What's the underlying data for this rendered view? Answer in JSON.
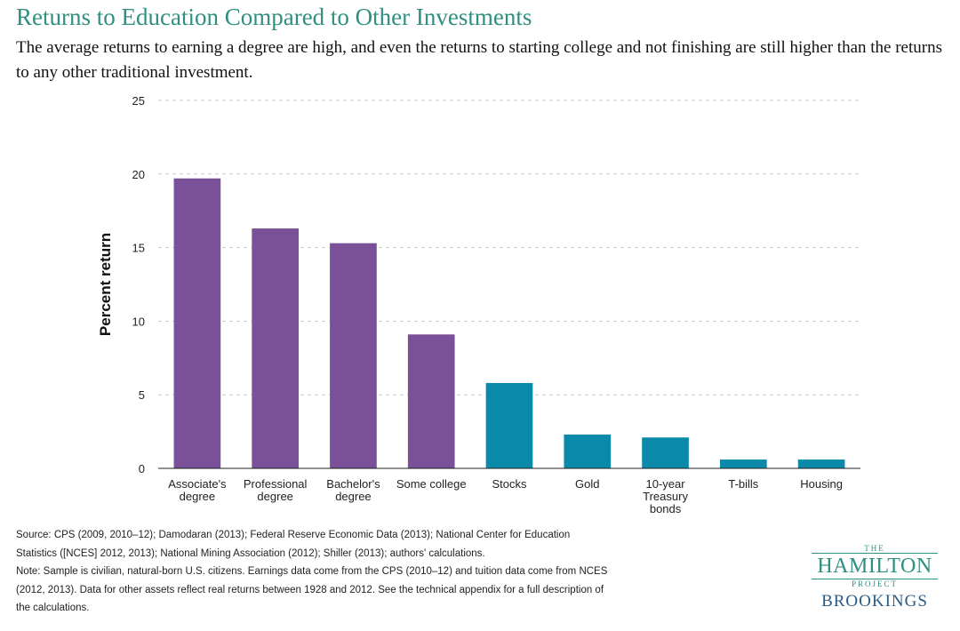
{
  "header": {
    "title": "Returns to Education Compared to Other Investments",
    "subtitle": "The average returns to earning a degree are high, and even the returns to starting college and not finishing are still higher than the returns to any other traditional investment."
  },
  "chart_data": {
    "type": "bar",
    "title": "Returns to Education Compared to Other Investments",
    "xlabel": "",
    "ylabel": "Percent return",
    "ylim": [
      0,
      25
    ],
    "yticks": [
      0,
      5,
      10,
      15,
      20,
      25
    ],
    "grid": true,
    "categories": [
      [
        "Associate's",
        "degree"
      ],
      [
        "Professional",
        "degree"
      ],
      [
        "Bachelor's",
        "degree"
      ],
      [
        "Some college"
      ],
      [
        "Stocks"
      ],
      [
        "Gold"
      ],
      [
        "10-year",
        "Treasury",
        "bonds"
      ],
      [
        "T-bills"
      ],
      [
        "Housing"
      ]
    ],
    "values": [
      19.7,
      16.3,
      15.3,
      9.1,
      5.8,
      2.3,
      2.1,
      0.6,
      0.6
    ],
    "groups": [
      "education",
      "education",
      "education",
      "education",
      "investment",
      "investment",
      "investment",
      "investment",
      "investment"
    ],
    "colors": {
      "education": "#7a5099",
      "investment": "#0b89a8",
      "grid": "#c8c8c8",
      "axis": "#222222"
    }
  },
  "notes": {
    "source": "Source: CPS (2009, 2010–12); Damodaran (2013); Federal Reserve Economic Data (2013); National Center for Education Statistics ([NCES] 2012, 2013); National Mining Association (2012); Shiller (2013); authors' calculations.",
    "note": "Note: Sample is civilian, natural-born U.S. citizens. Earnings data come from the CPS (2010–12) and tuition data come from NCES (2012, 2013). Data for other assets reflect real returns between 1928 and 2012. See the technical appendix for a full description of the calculations."
  },
  "logo": {
    "the": "THE",
    "hamilton": "HAMILTON",
    "project": "PROJECT",
    "brookings": "BROOKINGS"
  }
}
